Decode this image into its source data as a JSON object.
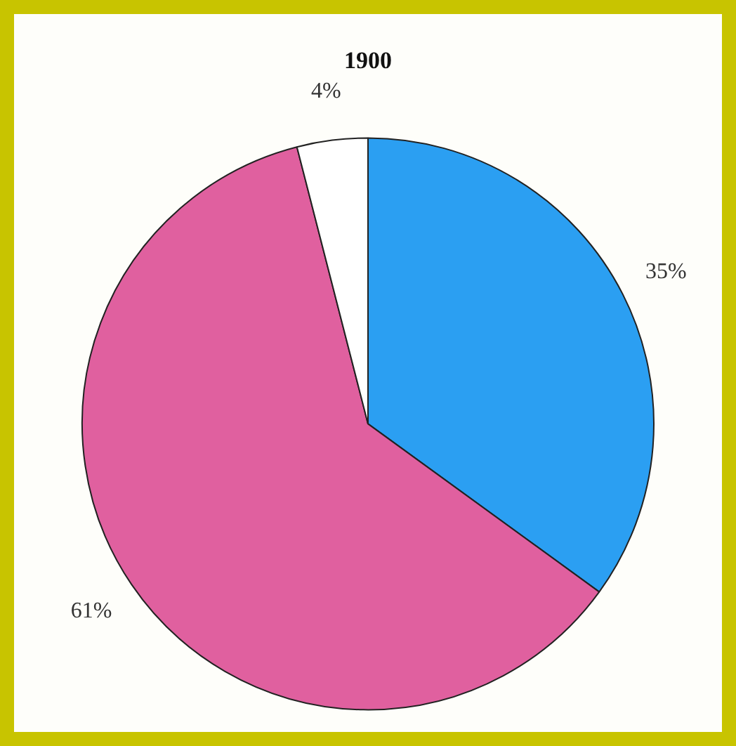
{
  "chart_data": {
    "type": "pie",
    "title": "1900",
    "categories": [
      null,
      null,
      null
    ],
    "values": [
      35,
      61,
      4
    ],
    "colors": [
      "#2b9ff2",
      "#e0609f",
      "#ffffff"
    ],
    "value_labels": [
      "35%",
      "61%",
      "4%"
    ],
    "legend": false
  }
}
